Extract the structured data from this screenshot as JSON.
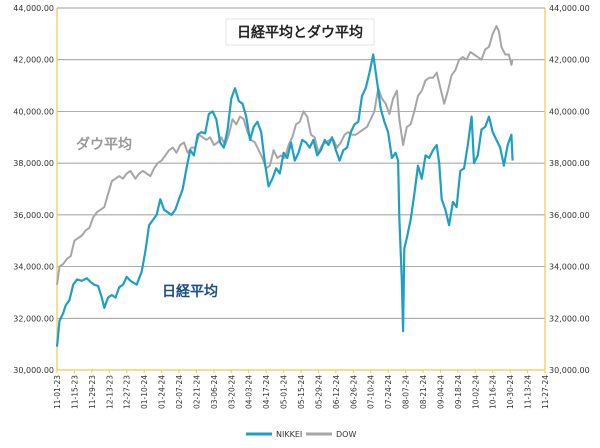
{
  "chart_data": {
    "type": "line",
    "title": "日経平均とダウ平均",
    "annotations": [
      {
        "text": "ダウ平均",
        "series": "DOW"
      },
      {
        "text": "日経平均",
        "series": "NIKKEI"
      }
    ],
    "legend": {
      "placement": "bottom",
      "entries": [
        "NIKKEI",
        "DOW"
      ]
    },
    "grid": true,
    "colors": {
      "NIKKEI": "#1e9fc4",
      "DOW": "#a6a6a6",
      "frame": "#f2c94c",
      "grid": "#7f7f7f"
    },
    "y_left": {
      "min": 30000,
      "max": 44000,
      "ticks": [
        "30,000.00",
        "32,000.00",
        "34,000.00",
        "36,000.00",
        "38,000.00",
        "40,000.00",
        "42,000.00",
        "44,000.00"
      ]
    },
    "y_right": {
      "min": 30000,
      "max": 44000,
      "ticks": [
        "30,000.00",
        "32,000.00",
        "34,000.00",
        "36,000.00",
        "38,000.00",
        "40,000.00",
        "42,000.00",
        "44,000.00"
      ]
    },
    "x_ticks": [
      "11-01-23",
      "11-15-23",
      "11-29-23",
      "12-13-23",
      "12-27-23",
      "01-10-24",
      "01-24-24",
      "02-07-24",
      "02-21-24",
      "03-06-24",
      "03-20-24",
      "04-03-24",
      "04-17-24",
      "05-01-24",
      "05-15-24",
      "05-29-24",
      "06-12-24",
      "06-26-24",
      "07-10-24",
      "07-24-24",
      "08-07-24",
      "08-21-24",
      "09-04-24",
      "09-18-24",
      "10-02-24",
      "10-16-24",
      "10-30-24",
      "11-13-24",
      "11-27-24"
    ],
    "x_range": [
      "11-01-23",
      "11-27-24"
    ],
    "series": [
      {
        "name": "NIKKEI",
        "points": [
          [
            "11-01-23",
            30900
          ],
          [
            "11-03-23",
            31900
          ],
          [
            "11-06-23",
            32200
          ],
          [
            "11-08-23",
            32500
          ],
          [
            "11-11-23",
            32700
          ],
          [
            "11-14-23",
            33300
          ],
          [
            "11-17-23",
            33500
          ],
          [
            "11-21-23",
            33450
          ],
          [
            "11-25-23",
            33550
          ],
          [
            "11-28-23",
            33400
          ],
          [
            "12-01-23",
            33300
          ],
          [
            "12-04-23",
            33250
          ],
          [
            "12-07-23",
            32800
          ],
          [
            "12-09-23",
            32400
          ],
          [
            "12-12-23",
            32800
          ],
          [
            "12-15-23",
            32900
          ],
          [
            "12-18-23",
            32800
          ],
          [
            "12-21-23",
            33200
          ],
          [
            "12-24-23",
            33300
          ],
          [
            "12-27-23",
            33600
          ],
          [
            "12-30-23",
            33450
          ],
          [
            "01-04-24",
            33300
          ],
          [
            "01-08-24",
            33800
          ],
          [
            "01-11-24",
            34600
          ],
          [
            "01-14-24",
            35600
          ],
          [
            "01-17-24",
            35800
          ],
          [
            "01-20-24",
            36000
          ],
          [
            "01-23-24",
            36600
          ],
          [
            "01-26-24",
            36200
          ],
          [
            "01-29-24",
            36100
          ],
          [
            "02-01-24",
            36000
          ],
          [
            "02-04-24",
            36200
          ],
          [
            "02-07-24",
            36600
          ],
          [
            "02-10-24",
            37000
          ],
          [
            "02-13-24",
            37800
          ],
          [
            "02-16-24",
            38500
          ],
          [
            "02-19-24",
            38300
          ],
          [
            "02-22-24",
            39100
          ],
          [
            "02-25-24",
            39200
          ],
          [
            "02-28-24",
            39150
          ],
          [
            "03-02-24",
            39900
          ],
          [
            "03-05-24",
            40000
          ],
          [
            "03-08-24",
            39700
          ],
          [
            "03-11-24",
            38800
          ],
          [
            "03-14-24",
            38600
          ],
          [
            "03-17-24",
            39300
          ],
          [
            "03-20-24",
            40500
          ],
          [
            "03-23-24",
            40900
          ],
          [
            "03-26-24",
            40400
          ],
          [
            "03-29-24",
            40300
          ],
          [
            "04-01-24",
            39800
          ],
          [
            "04-04-24",
            38900
          ],
          [
            "04-07-24",
            39400
          ],
          [
            "04-10-24",
            39600
          ],
          [
            "04-13-24",
            39200
          ],
          [
            "04-16-24",
            38000
          ],
          [
            "04-19-24",
            37100
          ],
          [
            "04-22-24",
            37400
          ],
          [
            "04-25-24",
            37800
          ],
          [
            "04-28-24",
            37600
          ],
          [
            "05-01-24",
            38400
          ],
          [
            "05-04-24",
            38200
          ],
          [
            "05-07-24",
            38800
          ],
          [
            "05-10-24",
            38100
          ],
          [
            "05-13-24",
            38400
          ],
          [
            "05-16-24",
            38900
          ],
          [
            "05-19-24",
            38800
          ],
          [
            "05-22-24",
            38600
          ],
          [
            "05-25-24",
            38900
          ],
          [
            "05-28-24",
            38300
          ],
          [
            "05-31-24",
            38500
          ],
          [
            "06-03-24",
            38900
          ],
          [
            "06-06-24",
            38700
          ],
          [
            "06-09-24",
            39000
          ],
          [
            "06-12-24",
            38500
          ],
          [
            "06-15-24",
            38100
          ],
          [
            "06-18-24",
            38500
          ],
          [
            "06-21-24",
            38600
          ],
          [
            "06-24-24",
            39200
          ],
          [
            "06-27-24",
            39500
          ],
          [
            "06-30-24",
            39600
          ],
          [
            "07-03-24",
            40600
          ],
          [
            "07-06-24",
            40900
          ],
          [
            "07-09-24",
            41500
          ],
          [
            "07-12-24",
            42200
          ],
          [
            "07-15-24",
            41200
          ],
          [
            "07-18-24",
            40100
          ],
          [
            "07-21-24",
            39600
          ],
          [
            "07-24-24",
            39200
          ],
          [
            "07-27-24",
            38200
          ],
          [
            "07-30-24",
            38400
          ],
          [
            "08-01-24",
            38100
          ],
          [
            "08-02-24",
            35900
          ],
          [
            "08-04-24",
            33500
          ],
          [
            "08-05-24",
            31500
          ],
          [
            "08-06-24",
            34700
          ],
          [
            "08-08-24",
            35100
          ],
          [
            "08-11-24",
            35800
          ],
          [
            "08-14-24",
            36800
          ],
          [
            "08-17-24",
            37900
          ],
          [
            "08-20-24",
            37400
          ],
          [
            "08-23-24",
            38300
          ],
          [
            "08-26-24",
            38200
          ],
          [
            "08-29-24",
            38500
          ],
          [
            "09-01-24",
            38700
          ],
          [
            "09-03-24",
            38000
          ],
          [
            "09-05-24",
            36600
          ],
          [
            "09-08-24",
            36200
          ],
          [
            "09-11-24",
            35600
          ],
          [
            "09-14-24",
            36500
          ],
          [
            "09-17-24",
            36300
          ],
          [
            "09-20-24",
            37700
          ],
          [
            "09-23-24",
            37800
          ],
          [
            "09-26-24",
            38700
          ],
          [
            "09-29-24",
            39800
          ],
          [
            "10-01-24",
            38000
          ],
          [
            "10-04-24",
            38300
          ],
          [
            "10-07-24",
            39300
          ],
          [
            "10-10-24",
            39400
          ],
          [
            "10-13-24",
            39800
          ],
          [
            "10-16-24",
            39200
          ],
          [
            "10-19-24",
            38900
          ],
          [
            "10-22-24",
            38600
          ],
          [
            "10-25-24",
            37900
          ],
          [
            "10-28-24",
            38700
          ],
          [
            "10-31-24",
            39100
          ],
          [
            "11-01-24",
            38100
          ]
        ]
      },
      {
        "name": "DOW",
        "points": [
          [
            "11-01-23",
            33300
          ],
          [
            "11-03-23",
            34000
          ],
          [
            "11-06-23",
            34100
          ],
          [
            "11-09-23",
            34300
          ],
          [
            "11-12-23",
            34400
          ],
          [
            "11-15-23",
            35000
          ],
          [
            "11-18-23",
            35100
          ],
          [
            "11-21-23",
            35200
          ],
          [
            "11-24-23",
            35400
          ],
          [
            "11-27-23",
            35500
          ],
          [
            "11-30-23",
            35900
          ],
          [
            "12-03-23",
            36100
          ],
          [
            "12-06-23",
            36200
          ],
          [
            "12-09-23",
            36300
          ],
          [
            "12-12-23",
            36800
          ],
          [
            "12-15-23",
            37300
          ],
          [
            "12-18-23",
            37400
          ],
          [
            "12-21-23",
            37500
          ],
          [
            "12-24-23",
            37400
          ],
          [
            "12-27-23",
            37600
          ],
          [
            "12-30-23",
            37700
          ],
          [
            "01-03-24",
            37400
          ],
          [
            "01-06-24",
            37600
          ],
          [
            "01-09-24",
            37700
          ],
          [
            "01-12-24",
            37600
          ],
          [
            "01-15-24",
            37500
          ],
          [
            "01-18-24",
            37800
          ],
          [
            "01-21-24",
            38000
          ],
          [
            "01-24-24",
            38100
          ],
          [
            "01-27-24",
            38300
          ],
          [
            "01-30-24",
            38500
          ],
          [
            "02-02-24",
            38600
          ],
          [
            "02-05-24",
            38400
          ],
          [
            "02-08-24",
            38700
          ],
          [
            "02-11-24",
            38800
          ],
          [
            "02-14-24",
            38400
          ],
          [
            "02-17-24",
            38600
          ],
          [
            "02-20-24",
            38600
          ],
          [
            "02-23-24",
            39100
          ],
          [
            "02-26-24",
            39000
          ],
          [
            "02-29-24",
            38900
          ],
          [
            "03-03-24",
            39000
          ],
          [
            "03-06-24",
            38700
          ],
          [
            "03-09-24",
            38800
          ],
          [
            "03-12-24",
            39000
          ],
          [
            "03-15-24",
            38700
          ],
          [
            "03-18-24",
            39100
          ],
          [
            "03-21-24",
            39700
          ],
          [
            "03-24-24",
            39500
          ],
          [
            "03-27-24",
            39800
          ],
          [
            "03-30-24",
            39700
          ],
          [
            "04-02-24",
            39200
          ],
          [
            "04-05-24",
            38900
          ],
          [
            "04-08-24",
            38800
          ],
          [
            "04-11-24",
            38500
          ],
          [
            "04-14-24",
            38200
          ],
          [
            "04-17-24",
            37800
          ],
          [
            "04-20-24",
            37900
          ],
          [
            "04-23-24",
            38500
          ],
          [
            "04-26-24",
            38200
          ],
          [
            "04-29-24",
            38300
          ],
          [
            "05-02-24",
            38200
          ],
          [
            "05-05-24",
            38700
          ],
          [
            "05-08-24",
            39000
          ],
          [
            "05-11-24",
            39500
          ],
          [
            "05-14-24",
            39600
          ],
          [
            "05-17-24",
            40000
          ],
          [
            "05-20-24",
            39800
          ],
          [
            "05-23-24",
            39100
          ],
          [
            "05-26-24",
            39000
          ],
          [
            "05-29-24",
            38400
          ],
          [
            "06-01-24",
            38700
          ],
          [
            "06-04-24",
            38800
          ],
          [
            "06-07-24",
            38900
          ],
          [
            "06-10-24",
            38900
          ],
          [
            "06-13-24",
            38600
          ],
          [
            "06-16-24",
            38800
          ],
          [
            "06-19-24",
            39100
          ],
          [
            "06-22-24",
            39200
          ],
          [
            "06-25-24",
            39100
          ],
          [
            "06-28-24",
            39100
          ],
          [
            "07-01-24",
            39200
          ],
          [
            "07-04-24",
            39300
          ],
          [
            "07-07-24",
            39400
          ],
          [
            "07-10-24",
            39700
          ],
          [
            "07-13-24",
            40000
          ],
          [
            "07-16-24",
            40900
          ],
          [
            "07-19-24",
            40500
          ],
          [
            "07-22-24",
            40300
          ],
          [
            "07-25-24",
            39900
          ],
          [
            "07-28-24",
            40500
          ],
          [
            "07-31-24",
            40800
          ],
          [
            "08-02-24",
            39700
          ],
          [
            "08-05-24",
            38700
          ],
          [
            "08-08-24",
            39400
          ],
          [
            "08-11-24",
            39500
          ],
          [
            "08-14-24",
            40000
          ],
          [
            "08-17-24",
            40600
          ],
          [
            "08-20-24",
            40800
          ],
          [
            "08-23-24",
            41200
          ],
          [
            "08-26-24",
            41300
          ],
          [
            "08-29-24",
            41300
          ],
          [
            "09-01-24",
            41500
          ],
          [
            "09-04-24",
            40900
          ],
          [
            "09-07-24",
            40300
          ],
          [
            "09-10-24",
            40800
          ],
          [
            "09-13-24",
            41400
          ],
          [
            "09-16-24",
            41600
          ],
          [
            "09-19-24",
            42000
          ],
          [
            "09-22-24",
            42100
          ],
          [
            "09-25-24",
            42000
          ],
          [
            "09-28-24",
            42300
          ],
          [
            "10-01-24",
            42200
          ],
          [
            "10-04-24",
            42100
          ],
          [
            "10-07-24",
            42000
          ],
          [
            "10-10-24",
            42400
          ],
          [
            "10-13-24",
            42500
          ],
          [
            "10-16-24",
            43000
          ],
          [
            "10-19-24",
            43300
          ],
          [
            "10-21-24",
            43100
          ],
          [
            "10-23-24",
            42500
          ],
          [
            "10-26-24",
            42200
          ],
          [
            "10-29-24",
            42200
          ],
          [
            "10-31-24",
            41800
          ],
          [
            "11-01-24",
            42000
          ]
        ]
      }
    ]
  }
}
